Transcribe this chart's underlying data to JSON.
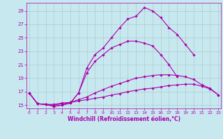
{
  "xlabel": "Windchill (Refroidissement éolien,°C)",
  "background_color": "#c8e8f0",
  "grid_color": "#aacccc",
  "line_color": "#aa00aa",
  "x_ticks": [
    0,
    1,
    2,
    3,
    4,
    5,
    6,
    7,
    8,
    9,
    10,
    11,
    12,
    13,
    14,
    15,
    16,
    17,
    18,
    19,
    20,
    21,
    22,
    23
  ],
  "y_ticks": [
    15,
    17,
    19,
    21,
    23,
    25,
    27,
    29
  ],
  "xlim": [
    -0.3,
    23.3
  ],
  "ylim": [
    14.5,
    30.2
  ],
  "series": [
    [
      16.8,
      15.2,
      15.1,
      15.1,
      15.3,
      15.4,
      15.6,
      15.8,
      16.0,
      16.2,
      16.5,
      16.7,
      17.0,
      17.2,
      17.4,
      17.5,
      17.7,
      17.9,
      18.0,
      18.1,
      18.1,
      17.8,
      17.4,
      16.5
    ],
    [
      16.8,
      15.2,
      15.1,
      15.0,
      15.2,
      15.4,
      15.8,
      16.2,
      16.8,
      17.3,
      17.8,
      18.2,
      18.6,
      19.0,
      19.2,
      19.4,
      19.5,
      19.5,
      19.4,
      19.2,
      18.8,
      18.0,
      17.5,
      16.5
    ],
    [
      16.8,
      15.2,
      15.1,
      14.8,
      15.0,
      15.3,
      16.8,
      19.8,
      21.5,
      22.5,
      23.5,
      24.0,
      24.5,
      24.5,
      24.2,
      23.8,
      22.5,
      21.0,
      19.2,
      null,
      null,
      null,
      null,
      null
    ],
    [
      16.8,
      15.2,
      15.1,
      14.8,
      15.0,
      15.3,
      16.8,
      20.5,
      22.5,
      23.5,
      25.0,
      26.5,
      27.8,
      28.2,
      29.5,
      29.0,
      28.0,
      26.5,
      25.5,
      24.0,
      22.5,
      null,
      null,
      null
    ]
  ]
}
